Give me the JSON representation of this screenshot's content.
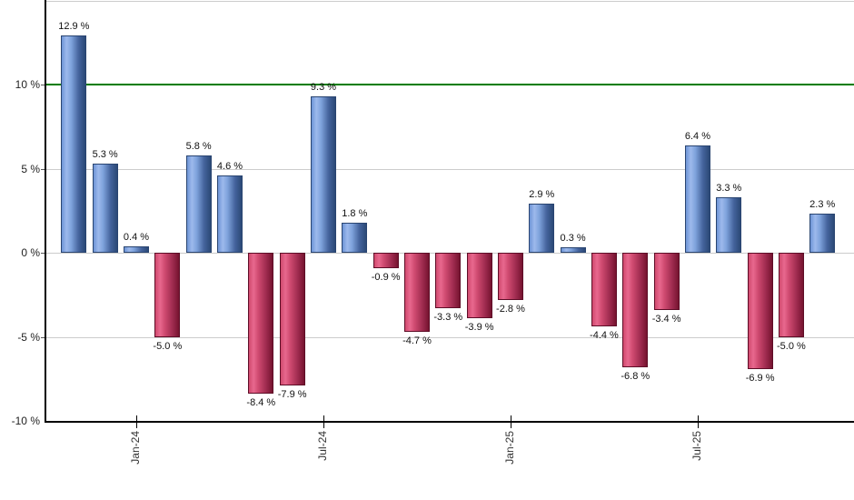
{
  "chart_data": {
    "type": "bar",
    "title": "",
    "xlabel": "",
    "ylabel": "",
    "unit": "%",
    "values": [
      12.9,
      5.3,
      0.4,
      -5.0,
      5.8,
      4.6,
      -8.4,
      -7.9,
      9.3,
      1.8,
      -0.9,
      -4.7,
      -3.3,
      -3.9,
      -2.8,
      2.9,
      0.3,
      -4.4,
      -6.8,
      -3.4,
      6.4,
      3.3,
      -6.9,
      -5.0,
      2.3
    ],
    "bar_labels": [
      "12.9 %",
      "5.3 %",
      "0.4 %",
      "-5.0 %",
      "5.8 %",
      "4.6 %",
      "-8.4 %",
      "-7.9 %",
      "9.3 %",
      "1.8 %",
      "-0.9 %",
      "-4.7 %",
      "-3.3 %",
      "-3.9 %",
      "-2.8 %",
      "2.9 %",
      "0.3 %",
      "-4.4 %",
      "-6.8 %",
      "-3.4 %",
      "6.4 %",
      "3.3 %",
      "-6.9 %",
      "-5.0 %",
      "2.3 %"
    ],
    "x_ticks": [
      {
        "label": "Jan-24",
        "bar_index": 2
      },
      {
        "label": "Jul-24",
        "bar_index": 8
      },
      {
        "label": "Jan-25",
        "bar_index": 14
      },
      {
        "label": "Jul-25",
        "bar_index": 20
      }
    ],
    "y_ticks": [
      {
        "label": "10 %",
        "value": 10
      },
      {
        "label": "5 %",
        "value": 5
      },
      {
        "label": "0 %",
        "value": 0
      },
      {
        "label": "-5 %",
        "value": -5
      },
      {
        "label": "-10 %",
        "value": -10
      }
    ],
    "ylim": [
      -10,
      15
    ],
    "gridline_values": [
      15,
      5,
      0,
      -5
    ],
    "benchmark_line": {
      "value": 10,
      "color": "#007c00"
    },
    "grid": true,
    "legend": "none",
    "colors": {
      "positive_bar": "#6d94d6",
      "positive_bar_highlight": "#9db9ec",
      "positive_bar_dark": "#2b4976",
      "negative_bar": "#d04a6e",
      "negative_bar_highlight": "#e8688e",
      "negative_bar_dark": "#75132f",
      "gridline": "#cccccc",
      "axis": "#000000",
      "benchmark": "#007c00",
      "label_text": "#111111",
      "axis_text": "#222222"
    }
  }
}
